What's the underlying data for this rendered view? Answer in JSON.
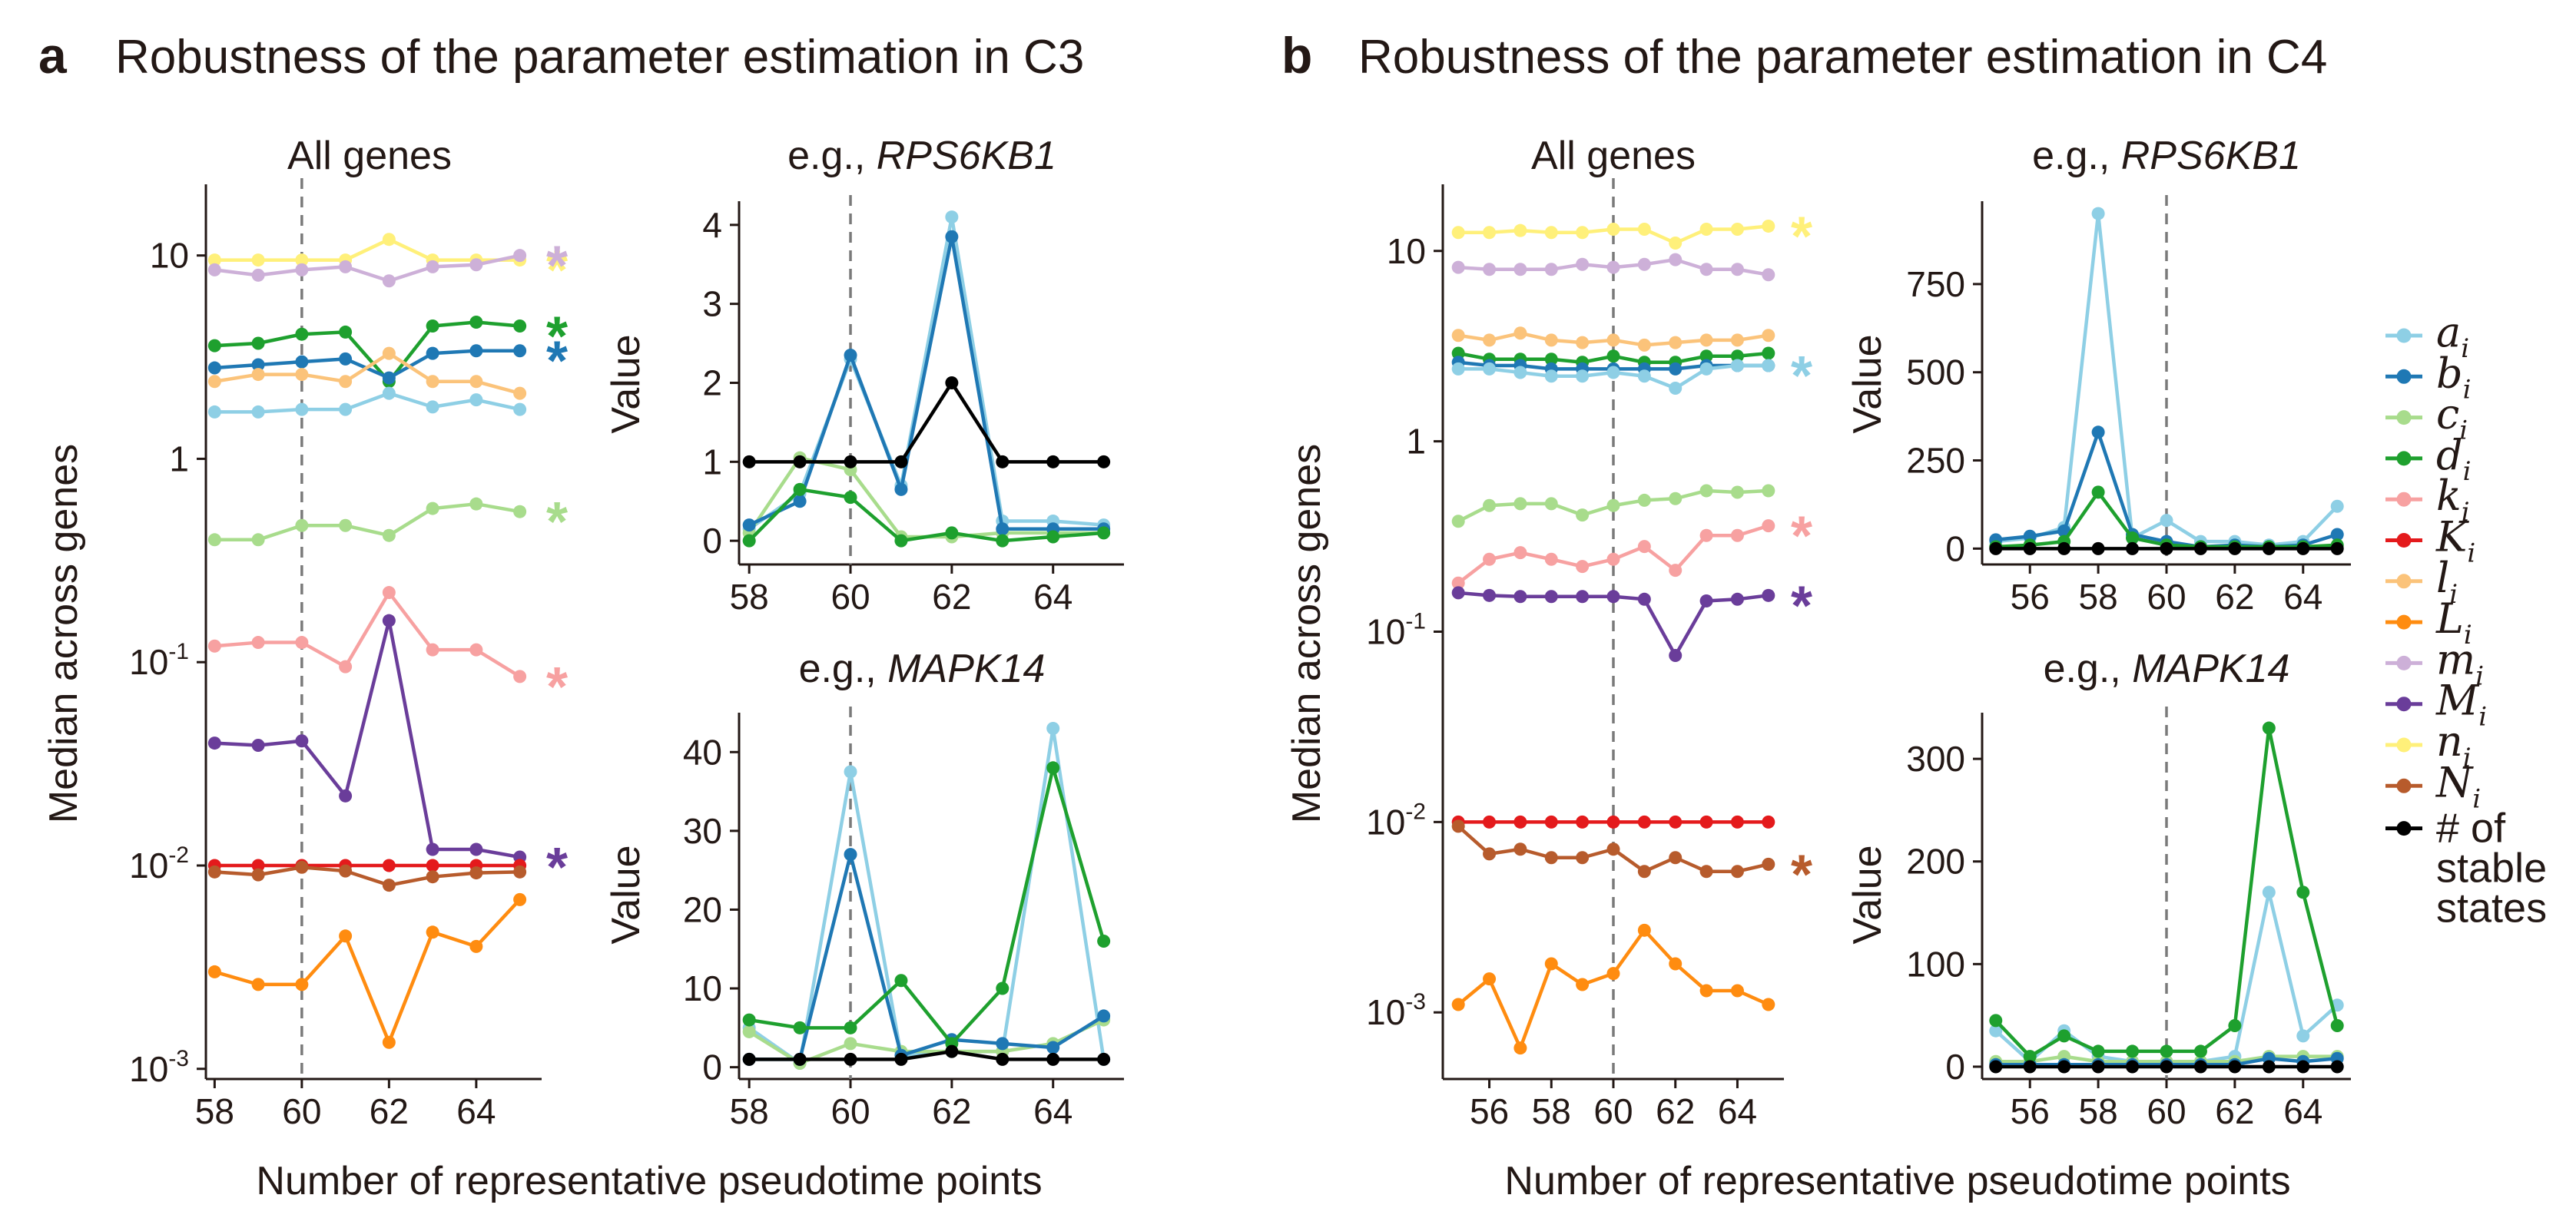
{
  "colors": {
    "a_i": "#8ecfe5",
    "b_i": "#1f78b4",
    "c_i": "#a8dc8c",
    "d_i": "#1ea02e",
    "k_i": "#f7a1a1",
    "K_i": "#e41a1c",
    "l_i": "#fbc37a",
    "L_i": "#ff8c10",
    "m_i": "#cdb0d8",
    "M_i": "#6a3d9a",
    "n_i": "#fff07a",
    "N_i": "#b75b2c",
    "stable": "#000000"
  },
  "panels": [
    {
      "label": "a",
      "title": "Robustness of the parameter estimation in C3"
    },
    {
      "label": "b",
      "title": "Robustness of the parameter estimation in C4"
    }
  ],
  "shared": {
    "xlabel": "Number of representative pseudotime points",
    "left_ylabel": "Median across genes",
    "right_ylabel": "Value",
    "vline_at": 60,
    "star": "*"
  },
  "legend": {
    "items": [
      {
        "key": "a_i",
        "base": "a",
        "sub": "i"
      },
      {
        "key": "b_i",
        "base": "b",
        "sub": "i"
      },
      {
        "key": "c_i",
        "base": "c",
        "sub": "i"
      },
      {
        "key": "d_i",
        "base": "d",
        "sub": "i"
      },
      {
        "key": "k_i",
        "base": "k",
        "sub": "i"
      },
      {
        "key": "K_i",
        "base": "K",
        "sub": "i"
      },
      {
        "key": "l_i",
        "base": "l",
        "sub": "i"
      },
      {
        "key": "L_i",
        "base": "L",
        "sub": "i"
      },
      {
        "key": "m_i",
        "base": "m",
        "sub": "i"
      },
      {
        "key": "M_i",
        "base": "M",
        "sub": "i"
      },
      {
        "key": "n_i",
        "base": "n",
        "sub": "i"
      },
      {
        "key": "N_i",
        "base": "N",
        "sub": "i"
      }
    ],
    "stable_label": [
      "# of",
      "stable",
      "states"
    ]
  },
  "chart_data": [
    {
      "id": "a-all",
      "type": "line",
      "title": "All genes",
      "xlabel": "Number of representative pseudotime points",
      "ylabel": "Median across genes",
      "yscale": "log",
      "xlim": [
        57.8,
        65.5
      ],
      "ylim_log10": [
        -3.05,
        1.35
      ],
      "x_ticks": [
        "58",
        "60",
        "62",
        "64"
      ],
      "y_ticks": [
        {
          "v": 10,
          "base": "10",
          "exp": ""
        },
        {
          "v": 1,
          "base": "1",
          "exp": ""
        },
        {
          "v": 0.1,
          "base": "10",
          "exp": "-1"
        },
        {
          "v": 0.01,
          "base": "10",
          "exp": "-2"
        },
        {
          "v": 0.001,
          "base": "10",
          "exp": "-3"
        }
      ],
      "x": [
        58,
        59,
        60,
        61,
        62,
        63,
        64,
        65
      ],
      "series": [
        {
          "name": "n_i",
          "values": [
            9.5,
            9.5,
            9.5,
            9.5,
            12,
            9.5,
            9.5,
            9.5
          ],
          "star": true
        },
        {
          "name": "m_i",
          "values": [
            8.5,
            8,
            8.5,
            8.8,
            7.5,
            8.8,
            9,
            10
          ],
          "star": true
        },
        {
          "name": "d_i",
          "values": [
            3.6,
            3.7,
            4.1,
            4.2,
            2.4,
            4.5,
            4.7,
            4.5
          ],
          "star": true
        },
        {
          "name": "b_i",
          "values": [
            2.8,
            2.9,
            3.0,
            3.1,
            2.5,
            3.3,
            3.4,
            3.4
          ],
          "star": true
        },
        {
          "name": "l_i",
          "values": [
            2.4,
            2.6,
            2.6,
            2.4,
            3.3,
            2.4,
            2.4,
            2.1
          ],
          "star": false
        },
        {
          "name": "a_i",
          "values": [
            1.7,
            1.7,
            1.75,
            1.75,
            2.1,
            1.8,
            1.95,
            1.75
          ],
          "star": false
        },
        {
          "name": "c_i",
          "values": [
            0.4,
            0.4,
            0.47,
            0.47,
            0.42,
            0.57,
            0.6,
            0.55
          ],
          "star": true
        },
        {
          "name": "k_i",
          "values": [
            0.12,
            0.125,
            0.125,
            0.095,
            0.22,
            0.115,
            0.115,
            0.085
          ],
          "star": true
        },
        {
          "name": "M_i",
          "values": [
            0.04,
            0.039,
            0.041,
            0.022,
            0.16,
            0.012,
            0.012,
            0.011
          ],
          "star": true
        },
        {
          "name": "K_i",
          "values": [
            0.01,
            0.01,
            0.01,
            0.01,
            0.01,
            0.01,
            0.01,
            0.01
          ],
          "star": false
        },
        {
          "name": "N_i",
          "values": [
            0.0093,
            0.009,
            0.0098,
            0.0094,
            0.008,
            0.0088,
            0.0092,
            0.0093
          ],
          "star": false
        },
        {
          "name": "L_i",
          "values": [
            0.003,
            0.0026,
            0.0026,
            0.0045,
            0.00135,
            0.0047,
            0.004,
            0.0068
          ],
          "star": false
        }
      ]
    },
    {
      "id": "a-rps",
      "type": "line",
      "title_prefix": "e.g., ",
      "title_gene": "RPS6KB1",
      "xlabel": "Number of representative pseudotime points",
      "ylabel": "Value",
      "xlim": [
        57.8,
        65.4
      ],
      "ylim": [
        -0.3,
        4.3
      ],
      "x_ticks": [
        "58",
        "60",
        "62",
        "64"
      ],
      "y_ticks": [
        "0",
        "1",
        "2",
        "3",
        "4"
      ],
      "x": [
        58,
        59,
        60,
        61,
        62,
        63,
        64,
        65
      ],
      "series": [
        {
          "name": "a_i",
          "values": [
            0.15,
            0.6,
            2.3,
            0.7,
            4.1,
            0.25,
            0.25,
            0.2
          ]
        },
        {
          "name": "c_i",
          "values": [
            0.1,
            1.05,
            0.9,
            0.05,
            0.05,
            0.1,
            0.1,
            0.1
          ]
        },
        {
          "name": "b_i",
          "values": [
            0.2,
            0.5,
            2.35,
            0.65,
            3.85,
            0.15,
            0.15,
            0.15
          ]
        },
        {
          "name": "d_i",
          "values": [
            0.0,
            0.65,
            0.55,
            0.0,
            0.1,
            0.0,
            0.05,
            0.1
          ]
        },
        {
          "name": "stable",
          "values": [
            1,
            1,
            1,
            1,
            2,
            1,
            1,
            1
          ]
        }
      ]
    },
    {
      "id": "a-mapk",
      "type": "line",
      "title_prefix": "e.g., ",
      "title_gene": "MAPK14",
      "xlabel": "Number of representative pseudotime points",
      "ylabel": "Value",
      "xlim": [
        57.8,
        65.4
      ],
      "ylim": [
        -1.5,
        45
      ],
      "x_ticks": [
        "58",
        "60",
        "62",
        "64"
      ],
      "y_ticks": [
        "0",
        "10",
        "20",
        "30",
        "40"
      ],
      "x": [
        58,
        59,
        60,
        61,
        62,
        63,
        64,
        65
      ],
      "series": [
        {
          "name": "a_i",
          "values": [
            5,
            0.5,
            37.5,
            1.5,
            2,
            2,
            43,
            1
          ]
        },
        {
          "name": "c_i",
          "values": [
            4.5,
            0.5,
            3,
            2,
            2,
            2,
            3,
            6
          ]
        },
        {
          "name": "b_i",
          "values": [
            1,
            1,
            27,
            1.5,
            3.5,
            3,
            2.5,
            6.5
          ]
        },
        {
          "name": "d_i",
          "values": [
            6,
            5,
            5,
            11,
            3,
            10,
            38,
            16
          ]
        },
        {
          "name": "stable",
          "values": [
            1,
            1,
            1,
            1,
            2,
            1,
            1,
            1
          ]
        }
      ]
    },
    {
      "id": "b-all",
      "type": "line",
      "title": "All genes",
      "xlabel": "Number of representative pseudotime points",
      "ylabel": "Median across genes",
      "yscale": "log",
      "xlim": [
        54.5,
        65.5
      ],
      "ylim_log10": [
        -3.35,
        1.35
      ],
      "x_ticks": [
        "56",
        "58",
        "60",
        "62",
        "64"
      ],
      "y_ticks": [
        {
          "v": 10,
          "base": "10",
          "exp": ""
        },
        {
          "v": 1,
          "base": "1",
          "exp": ""
        },
        {
          "v": 0.1,
          "base": "10",
          "exp": "-1"
        },
        {
          "v": 0.01,
          "base": "10",
          "exp": "-2"
        },
        {
          "v": 0.001,
          "base": "10",
          "exp": "-3"
        }
      ],
      "x": [
        55,
        56,
        57,
        58,
        59,
        60,
        61,
        62,
        63,
        64,
        65
      ],
      "series": [
        {
          "name": "n_i",
          "values": [
            12.5,
            12.5,
            12.8,
            12.5,
            12.5,
            13,
            13,
            11,
            13,
            13,
            13.5
          ],
          "star": true
        },
        {
          "name": "m_i",
          "values": [
            8.2,
            8,
            8,
            8,
            8.5,
            8.2,
            8.5,
            9,
            8,
            8,
            7.5
          ],
          "star": false
        },
        {
          "name": "l_i",
          "values": [
            3.6,
            3.4,
            3.7,
            3.4,
            3.3,
            3.4,
            3.2,
            3.3,
            3.4,
            3.4,
            3.6
          ],
          "star": false
        },
        {
          "name": "d_i",
          "values": [
            2.9,
            2.7,
            2.7,
            2.7,
            2.6,
            2.8,
            2.6,
            2.6,
            2.8,
            2.8,
            2.9
          ],
          "star": false
        },
        {
          "name": "b_i",
          "values": [
            2.6,
            2.5,
            2.5,
            2.4,
            2.4,
            2.4,
            2.4,
            2.4,
            2.5,
            2.5,
            2.5
          ],
          "star": false
        },
        {
          "name": "a_i",
          "values": [
            2.4,
            2.4,
            2.3,
            2.2,
            2.2,
            2.3,
            2.2,
            1.9,
            2.4,
            2.5,
            2.5
          ],
          "star": true
        },
        {
          "name": "c_i",
          "values": [
            0.38,
            0.46,
            0.47,
            0.47,
            0.41,
            0.46,
            0.49,
            0.5,
            0.55,
            0.54,
            0.55
          ],
          "star": false
        },
        {
          "name": "k_i",
          "values": [
            0.18,
            0.24,
            0.26,
            0.24,
            0.22,
            0.24,
            0.28,
            0.21,
            0.32,
            0.32,
            0.36
          ],
          "star": true
        },
        {
          "name": "M_i",
          "values": [
            0.16,
            0.155,
            0.153,
            0.153,
            0.153,
            0.153,
            0.148,
            0.075,
            0.145,
            0.148,
            0.155
          ],
          "star": true
        },
        {
          "name": "K_i",
          "values": [
            0.01,
            0.01,
            0.01,
            0.01,
            0.01,
            0.01,
            0.01,
            0.01,
            0.01,
            0.01,
            0.01
          ],
          "star": false
        },
        {
          "name": "N_i",
          "values": [
            0.0095,
            0.0068,
            0.0072,
            0.0065,
            0.0065,
            0.0072,
            0.0055,
            0.0065,
            0.0055,
            0.0055,
            0.006
          ],
          "star": true
        },
        {
          "name": "L_i",
          "values": [
            0.0011,
            0.0015,
            0.00065,
            0.0018,
            0.0014,
            0.0016,
            0.0027,
            0.0018,
            0.0013,
            0.0013,
            0.0011
          ],
          "star": false
        }
      ]
    },
    {
      "id": "b-rps",
      "type": "line",
      "title_prefix": "e.g., ",
      "title_gene": "RPS6KB1",
      "xlabel": "Number of representative pseudotime points",
      "ylabel": "Value",
      "xlim": [
        54.6,
        65.4
      ],
      "ylim": [
        -45,
        985
      ],
      "x_ticks": [
        "56",
        "58",
        "60",
        "62",
        "64"
      ],
      "y_ticks": [
        "0",
        "250",
        "500",
        "750"
      ],
      "x": [
        55,
        56,
        57,
        58,
        59,
        60,
        61,
        62,
        63,
        64,
        65
      ],
      "series": [
        {
          "name": "a_i",
          "values": [
            20,
            30,
            60,
            950,
            30,
            80,
            20,
            20,
            10,
            20,
            120
          ]
        },
        {
          "name": "b_i",
          "values": [
            25,
            35,
            50,
            330,
            40,
            20,
            5,
            10,
            5,
            10,
            40
          ]
        },
        {
          "name": "d_i",
          "values": [
            5,
            10,
            20,
            160,
            30,
            10,
            5,
            5,
            5,
            5,
            10
          ]
        },
        {
          "name": "stable",
          "values": [
            0,
            0,
            0,
            0,
            0,
            0,
            0,
            0,
            0,
            0,
            0
          ]
        }
      ]
    },
    {
      "id": "b-mapk",
      "type": "line",
      "title_prefix": "e.g., ",
      "title_gene": "MAPK14",
      "xlabel": "Number of representative pseudotime points",
      "ylabel": "Value",
      "xlim": [
        54.6,
        65.4
      ],
      "ylim": [
        -12,
        345
      ],
      "x_ticks": [
        "56",
        "58",
        "60",
        "62",
        "64"
      ],
      "y_ticks": [
        "0",
        "100",
        "200",
        "300"
      ],
      "x": [
        55,
        56,
        57,
        58,
        59,
        60,
        61,
        62,
        63,
        64,
        65
      ],
      "series": [
        {
          "name": "a_i",
          "values": [
            35,
            5,
            35,
            10,
            5,
            5,
            5,
            10,
            170,
            30,
            60
          ]
        },
        {
          "name": "c_i",
          "values": [
            5,
            5,
            10,
            5,
            5,
            5,
            5,
            5,
            10,
            10,
            10
          ]
        },
        {
          "name": "b_i",
          "values": [
            2,
            2,
            2,
            2,
            2,
            2,
            2,
            2,
            8,
            5,
            8
          ]
        },
        {
          "name": "d_i",
          "values": [
            45,
            10,
            30,
            15,
            15,
            15,
            15,
            40,
            330,
            170,
            40
          ]
        },
        {
          "name": "stable",
          "values": [
            0,
            0,
            0,
            0,
            0,
            0,
            0,
            0,
            0,
            0,
            0
          ]
        }
      ]
    }
  ]
}
